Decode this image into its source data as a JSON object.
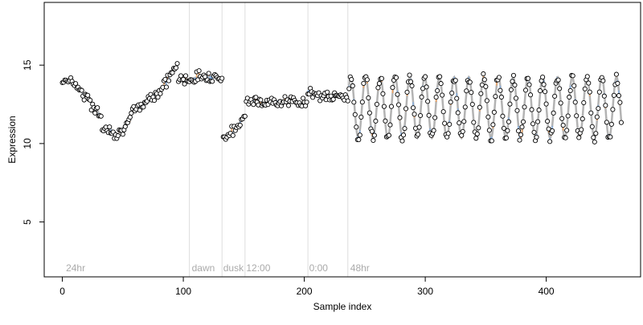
{
  "chart_data": {
    "type": "scatter",
    "title": "",
    "xlabel": "Sample index",
    "ylabel": "Expression",
    "xlim": [
      -15,
      478
    ],
    "ylim": [
      1.5,
      19
    ],
    "xticks": [
      0,
      100,
      200,
      300,
      400
    ],
    "yticks": [
      5,
      10,
      15
    ],
    "grid": false,
    "phase_boundaries": [
      105,
      132,
      151,
      203,
      236
    ],
    "phase_labels": [
      {
        "text": "24hr",
        "x": 3
      },
      {
        "text": "dawn",
        "x": 107
      },
      {
        "text": "dusk",
        "x": 133
      },
      {
        "text": "12:00",
        "x": 152
      },
      {
        "text": "0:00",
        "x": 204
      },
      {
        "text": "48hr",
        "x": 238
      }
    ],
    "colors": {
      "fit_line": "#b3b3b3",
      "residual_positive": "#f4a460",
      "residual_negative": "#87b0e0",
      "point_fill": "#ffffff",
      "point_stroke": "#000000",
      "phase_line": "#dddddd",
      "phase_label": "#aaaaaa"
    },
    "segments": [
      {
        "x_start": 0,
        "x_end": 23,
        "y_points": [
          [
            0,
            14.0
          ],
          [
            6,
            14.1
          ],
          [
            12,
            13.7
          ],
          [
            18,
            13.1
          ],
          [
            23,
            12.9
          ]
        ]
      },
      {
        "x_start": 24,
        "x_end": 32,
        "y_points": [
          [
            24,
            12.0
          ],
          [
            28,
            12.3
          ],
          [
            32,
            11.6
          ]
        ]
      },
      {
        "x_start": 33,
        "x_end": 44,
        "y_points": [
          [
            33,
            10.9
          ],
          [
            38,
            11.0
          ],
          [
            44,
            10.7
          ]
        ]
      },
      {
        "x_start": 45,
        "x_end": 56,
        "y_points": [
          [
            45,
            10.5
          ],
          [
            50,
            11.0
          ],
          [
            56,
            11.4
          ]
        ]
      },
      {
        "x_start": 57,
        "x_end": 95,
        "y_points": [
          [
            57,
            11.9
          ],
          [
            65,
            12.4
          ],
          [
            73,
            13.0
          ],
          [
            80,
            13.3
          ],
          [
            88,
            14.2
          ],
          [
            95,
            15.0
          ]
        ]
      },
      {
        "x_start": 96,
        "x_end": 132,
        "y_points": [
          [
            96,
            14.1
          ],
          [
            105,
            14.1
          ],
          [
            115,
            14.3
          ],
          [
            125,
            14.3
          ],
          [
            132,
            14.1
          ]
        ]
      },
      {
        "x_start": 133,
        "x_end": 143,
        "y_points": [
          [
            133,
            10.5
          ],
          [
            138,
            10.6
          ],
          [
            143,
            10.8
          ]
        ]
      },
      {
        "x_start": 144,
        "x_end": 151,
        "y_points": [
          [
            144,
            11.0
          ],
          [
            147,
            11.4
          ],
          [
            151,
            11.8
          ]
        ]
      },
      {
        "x_start": 152,
        "x_end": 202,
        "y_points": [
          [
            152,
            12.9
          ],
          [
            158,
            12.8
          ],
          [
            166,
            12.5
          ],
          [
            173,
            12.6
          ],
          [
            180,
            12.8
          ],
          [
            188,
            12.7
          ],
          [
            195,
            12.5
          ],
          [
            202,
            12.6
          ]
        ]
      },
      {
        "x_start": 203,
        "x_end": 236,
        "y_points": [
          [
            203,
            13.4
          ],
          [
            208,
            13.3
          ],
          [
            214,
            13.0
          ],
          [
            220,
            12.9
          ],
          [
            226,
            13.0
          ],
          [
            231,
            13.0
          ],
          [
            236,
            12.8
          ]
        ]
      }
    ],
    "oscillation": {
      "x_start": 237,
      "x_end": 462,
      "period": 12.2,
      "mean": 12.3,
      "amplitude": 1.95,
      "phase_offset": 0.8
    }
  }
}
